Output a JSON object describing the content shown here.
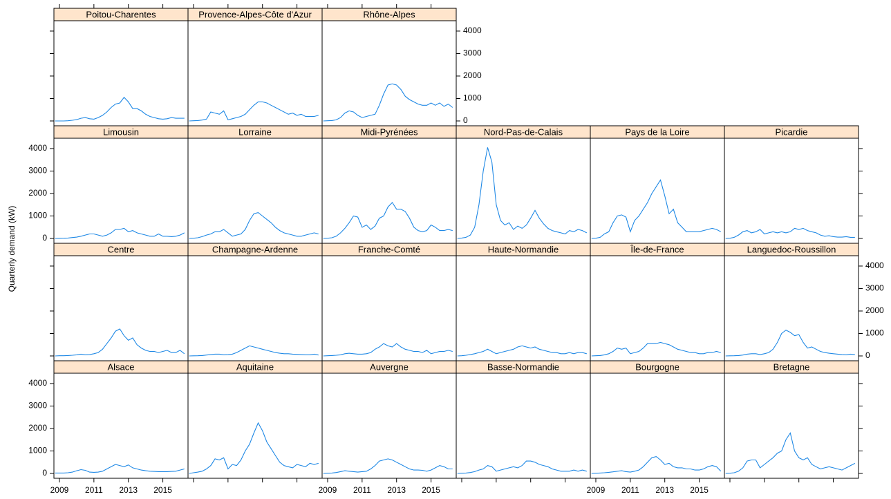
{
  "chart_data": {
    "type": "line",
    "ylabel": "Quarterly demand (kW)",
    "color": "#1e88e5",
    "x": [
      2008.75,
      2009,
      2009.25,
      2009.5,
      2009.75,
      2010,
      2010.25,
      2010.5,
      2010.75,
      2011,
      2011.25,
      2011.5,
      2011.75,
      2012,
      2012.25,
      2012.5,
      2012.75,
      2013,
      2013.25,
      2013.5,
      2013.75,
      2014,
      2014.25,
      2014.5,
      2014.75,
      2015,
      2015.25,
      2015.5,
      2015.75,
      2016,
      2016.25
    ],
    "xlim": [
      2008.68,
      2016.46
    ],
    "xticks": [
      2009,
      2011,
      2013,
      2015
    ],
    "ylim": [
      -215,
      4460
    ],
    "yticks": [
      0,
      1000,
      2000,
      3000,
      4000
    ],
    "series": [
      {
        "name": "Alsace",
        "values": [
          20,
          20,
          20,
          30,
          60,
          120,
          170,
          140,
          60,
          50,
          60,
          100,
          200,
          300,
          400,
          350,
          300,
          380,
          250,
          200,
          150,
          120,
          100,
          90,
          80,
          80,
          80,
          90,
          100,
          150,
          200
        ]
      },
      {
        "name": "Aquitaine",
        "values": [
          0,
          30,
          60,
          100,
          200,
          350,
          650,
          600,
          700,
          200,
          400,
          350,
          600,
          1000,
          1300,
          1800,
          2250,
          1900,
          1400,
          1100,
          800,
          500,
          350,
          300,
          250,
          400,
          350,
          300,
          450,
          400,
          450
        ]
      },
      {
        "name": "Auvergne",
        "values": [
          0,
          10,
          20,
          40,
          80,
          120,
          100,
          80,
          60,
          80,
          100,
          200,
          350,
          550,
          600,
          650,
          600,
          500,
          400,
          300,
          200,
          150,
          150,
          140,
          100,
          150,
          250,
          350,
          300,
          200,
          200
        ]
      },
      {
        "name": "Basse-Normandie",
        "values": [
          0,
          10,
          20,
          40,
          80,
          150,
          200,
          350,
          300,
          100,
          150,
          200,
          250,
          300,
          250,
          350,
          550,
          550,
          500,
          400,
          350,
          300,
          200,
          150,
          100,
          100,
          100,
          150,
          100,
          150,
          100
        ]
      },
      {
        "name": "Bourgogne",
        "values": [
          0,
          10,
          20,
          30,
          50,
          70,
          100,
          120,
          80,
          60,
          100,
          150,
          300,
          500,
          700,
          750,
          600,
          400,
          450,
          300,
          250,
          250,
          200,
          200,
          150,
          150,
          200,
          300,
          350,
          300,
          100
        ]
      },
      {
        "name": "Bretagne",
        "values": [
          0,
          10,
          30,
          100,
          250,
          550,
          600,
          600,
          250,
          400,
          550,
          700,
          900,
          1000,
          1500,
          1800,
          1000,
          700,
          600,
          700,
          400,
          300,
          200,
          250,
          300,
          250,
          200,
          150,
          250,
          350,
          450
        ]
      },
      {
        "name": "Centre",
        "values": [
          0,
          10,
          10,
          20,
          30,
          50,
          80,
          50,
          60,
          100,
          150,
          300,
          550,
          800,
          1100,
          1200,
          900,
          700,
          800,
          500,
          350,
          250,
          200,
          200,
          150,
          200,
          250,
          150,
          150,
          250,
          100
        ]
      },
      {
        "name": "Champagne-Ardenne",
        "values": [
          0,
          5,
          10,
          20,
          40,
          60,
          80,
          80,
          50,
          60,
          80,
          150,
          250,
          350,
          450,
          400,
          350,
          300,
          250,
          200,
          150,
          120,
          100,
          100,
          80,
          70,
          60,
          50,
          50,
          80,
          40
        ]
      },
      {
        "name": "Franche-Comté",
        "values": [
          0,
          10,
          20,
          30,
          50,
          100,
          120,
          100,
          80,
          80,
          100,
          150,
          300,
          400,
          550,
          450,
          400,
          550,
          400,
          300,
          250,
          200,
          200,
          150,
          250,
          100,
          150,
          200,
          200,
          250,
          200
        ]
      },
      {
        "name": "Haute-Normandie",
        "values": [
          0,
          10,
          30,
          60,
          100,
          150,
          200,
          300,
          200,
          100,
          150,
          200,
          250,
          300,
          400,
          450,
          400,
          350,
          400,
          300,
          250,
          200,
          150,
          150,
          100,
          100,
          150,
          100,
          150,
          150,
          100
        ]
      },
      {
        "name": "Île-de-France",
        "values": [
          0,
          10,
          20,
          50,
          100,
          200,
          350,
          300,
          350,
          100,
          150,
          200,
          350,
          550,
          550,
          550,
          600,
          550,
          500,
          400,
          300,
          250,
          200,
          150,
          150,
          100,
          100,
          150,
          150,
          200,
          150
        ]
      },
      {
        "name": "Languedoc-Roussillon",
        "values": [
          0,
          5,
          10,
          20,
          40,
          80,
          100,
          100,
          60,
          100,
          150,
          300,
          600,
          1000,
          1150,
          1050,
          900,
          950,
          600,
          350,
          400,
          300,
          200,
          150,
          120,
          100,
          80,
          60,
          50,
          80,
          60
        ]
      },
      {
        "name": "Limousin",
        "values": [
          0,
          5,
          10,
          20,
          40,
          60,
          100,
          150,
          200,
          200,
          150,
          100,
          150,
          250,
          400,
          400,
          450,
          300,
          350,
          250,
          200,
          150,
          100,
          100,
          200,
          100,
          100,
          80,
          100,
          150,
          250
        ]
      },
      {
        "name": "Lorraine",
        "values": [
          0,
          10,
          30,
          80,
          150,
          200,
          300,
          300,
          400,
          250,
          100,
          150,
          200,
          400,
          800,
          1100,
          1150,
          1000,
          850,
          700,
          500,
          350,
          250,
          200,
          150,
          100,
          100,
          150,
          200,
          250,
          200
        ]
      },
      {
        "name": "Midi-Pyrénées",
        "values": [
          0,
          10,
          30,
          100,
          250,
          450,
          700,
          1000,
          950,
          500,
          600,
          400,
          550,
          900,
          1000,
          1400,
          1600,
          1300,
          1300,
          1200,
          900,
          500,
          350,
          300,
          350,
          600,
          500,
          350,
          350,
          400,
          350
        ]
      },
      {
        "name": "Nord-Pas-de-Calais",
        "values": [
          0,
          20,
          50,
          150,
          500,
          1500,
          3000,
          4050,
          3400,
          1500,
          800,
          600,
          700,
          400,
          550,
          450,
          600,
          900,
          1250,
          900,
          650,
          450,
          350,
          300,
          250,
          200,
          350,
          300,
          400,
          350,
          250
        ]
      },
      {
        "name": "Pays de la Loire",
        "values": [
          0,
          10,
          50,
          200,
          300,
          700,
          1000,
          1050,
          950,
          300,
          800,
          1000,
          1300,
          1600,
          2000,
          2300,
          2600,
          1900,
          1100,
          1300,
          700,
          500,
          300,
          300,
          300,
          300,
          350,
          400,
          450,
          400,
          300
        ]
      },
      {
        "name": "Picardie",
        "values": [
          0,
          10,
          50,
          150,
          300,
          350,
          250,
          300,
          400,
          200,
          250,
          300,
          250,
          300,
          250,
          300,
          450,
          400,
          450,
          350,
          300,
          250,
          150,
          100,
          120,
          80,
          60,
          60,
          80,
          50,
          50
        ]
      },
      {
        "name": "Poitou-Charentes",
        "values": [
          0,
          0,
          0,
          10,
          30,
          60,
          120,
          150,
          100,
          80,
          150,
          250,
          400,
          600,
          750,
          800,
          1050,
          850,
          550,
          550,
          450,
          300,
          200,
          150,
          100,
          80,
          100,
          150,
          120,
          120,
          120
        ]
      },
      {
        "name": "Provence-Alpes-Côte d'Azur",
        "values": [
          0,
          10,
          20,
          40,
          80,
          400,
          350,
          300,
          450,
          50,
          100,
          150,
          200,
          300,
          500,
          700,
          850,
          850,
          800,
          700,
          600,
          500,
          400,
          300,
          350,
          250,
          300,
          200,
          200,
          200,
          250
        ]
      },
      {
        "name": "Rhône-Alpes",
        "values": [
          0,
          10,
          20,
          50,
          150,
          350,
          450,
          400,
          250,
          150,
          200,
          250,
          300,
          700,
          1200,
          1600,
          1650,
          1600,
          1400,
          1100,
          950,
          850,
          750,
          700,
          700,
          800,
          700,
          800,
          650,
          750,
          600
        ]
      }
    ]
  }
}
